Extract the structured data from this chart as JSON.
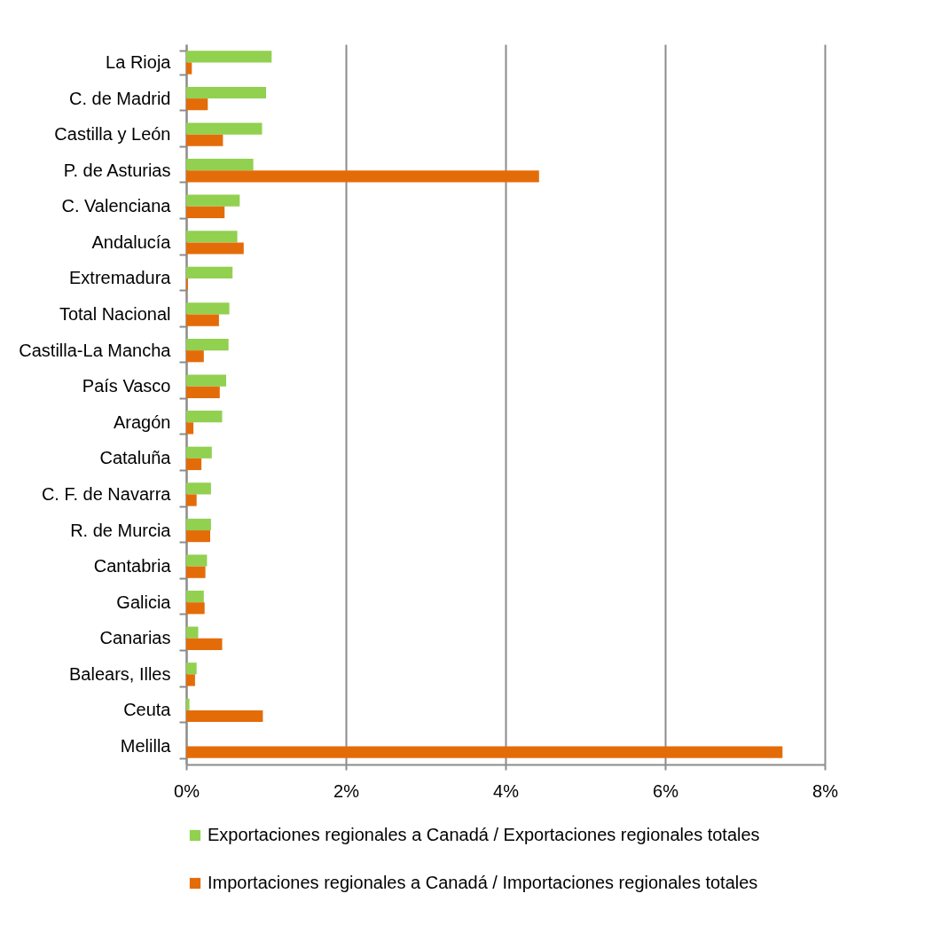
{
  "chart_data": {
    "type": "bar",
    "orientation": "horizontal",
    "categories": [
      "La Rioja",
      "C. de Madrid",
      "Castilla y León",
      "P. de Asturias",
      "C. Valenciana",
      "Andalucía",
      "Extremadura",
      "Total Nacional",
      "Castilla-La Mancha",
      "País Vasco",
      "Aragón",
      "Cataluña",
      "C. F. de Navarra",
      "R. de Murcia",
      "Cantabria",
      "Galicia",
      "Canarias",
      "Balears, Illes",
      "Ceuta",
      "Melilla"
    ],
    "series": [
      {
        "name": "Exportaciones regionales a Canadá / Exportaciones regionales totales",
        "color": "#92d050",
        "values": [
          1.07,
          1.0,
          0.95,
          0.84,
          0.67,
          0.64,
          0.58,
          0.54,
          0.53,
          0.5,
          0.45,
          0.32,
          0.31,
          0.31,
          0.26,
          0.22,
          0.15,
          0.13,
          0.04,
          0
        ]
      },
      {
        "name": "Importaciones regionales a Canadá / Importaciones regionales totales",
        "color": "#e36c09",
        "values": [
          0.07,
          0.27,
          0.46,
          4.42,
          0.48,
          0.72,
          0.02,
          0.41,
          0.22,
          0.42,
          0.09,
          0.19,
          0.13,
          0.3,
          0.24,
          0.23,
          0.45,
          0.11,
          0.96,
          7.47
        ]
      }
    ],
    "xlim": [
      0,
      8
    ],
    "xticks": [
      {
        "value": 0,
        "label": "0%"
      },
      {
        "value": 2,
        "label": "2%"
      },
      {
        "value": 4,
        "label": "4%"
      },
      {
        "value": 6,
        "label": "6%"
      },
      {
        "value": 8,
        "label": "8%"
      }
    ],
    "grid": "x",
    "legend": "bottom"
  }
}
